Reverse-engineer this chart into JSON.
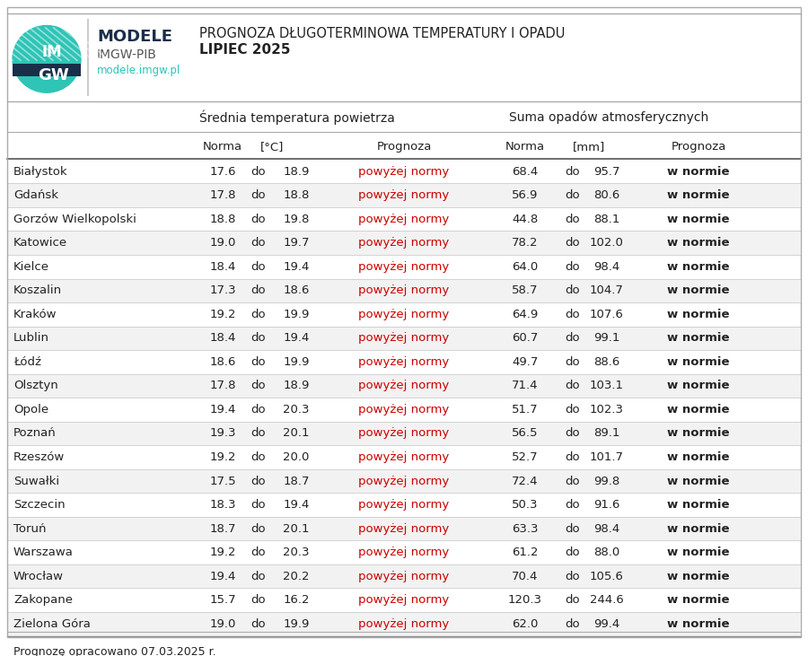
{
  "title_line1": "PROGNOZA DŁUGOTERMINOWA TEMPERATURY I OPADU",
  "title_line2": "LIPIEC 2025",
  "header_temp": "Średnia temperatura powietrza",
  "header_precip": "Suma opadów atmosferycznych",
  "cities": [
    "Białystok",
    "Gdańsk",
    "Gorzów Wielkopolski",
    "Katowice",
    "Kielce",
    "Koszalin",
    "Kraków",
    "Lublin",
    "Łódź",
    "Olsztyn",
    "Opole",
    "Poznań",
    "Rzeszów",
    "Suwałki",
    "Szczecin",
    "Toruń",
    "Warszawa",
    "Wrocław",
    "Zakopane",
    "Zielona Góra"
  ],
  "temp_norma_low": [
    17.6,
    17.8,
    18.8,
    19.0,
    18.4,
    17.3,
    19.2,
    18.4,
    18.6,
    17.8,
    19.4,
    19.3,
    19.2,
    17.5,
    18.3,
    18.7,
    19.2,
    19.4,
    15.7,
    19.0
  ],
  "temp_norma_high": [
    18.9,
    18.8,
    19.8,
    19.7,
    19.4,
    18.6,
    19.9,
    19.4,
    19.9,
    18.9,
    20.3,
    20.1,
    20.0,
    18.7,
    19.4,
    20.1,
    20.3,
    20.2,
    16.2,
    19.9
  ],
  "temp_prognoza": "powyżej normy",
  "precip_norma_low": [
    68.4,
    56.9,
    44.8,
    78.2,
    64.0,
    58.7,
    64.9,
    60.7,
    49.7,
    71.4,
    51.7,
    56.5,
    52.7,
    72.4,
    50.3,
    63.3,
    61.2,
    70.4,
    120.3,
    62.0
  ],
  "precip_norma_high": [
    95.7,
    80.6,
    88.1,
    102.0,
    98.4,
    104.7,
    107.6,
    99.1,
    88.6,
    103.1,
    102.3,
    89.1,
    101.7,
    99.8,
    91.6,
    98.4,
    88.0,
    105.6,
    244.6,
    99.4
  ],
  "precip_prognoza": "w normie",
  "footer": "Prognozę opracowano 07.03.2025 r.",
  "bg_color": "#ffffff",
  "row_alt_color": "#f2f2f2",
  "text_color": "#222222",
  "red_color": "#cc0000",
  "dark_color": "#1a2e4a",
  "teal_color": "#2ec4b6",
  "gray_line": "#bbbbbb",
  "dark_line": "#888888"
}
